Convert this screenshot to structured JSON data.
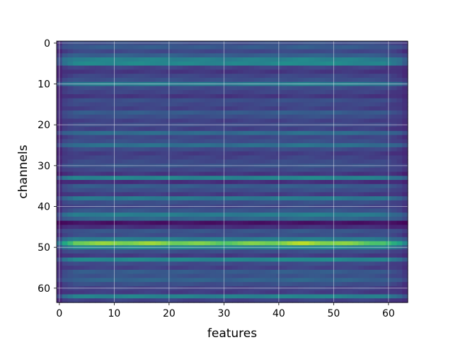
{
  "chart_data": {
    "type": "heatmap",
    "title": "",
    "xlabel": "features",
    "ylabel": "channels",
    "rows": 64,
    "cols": 64,
    "xlim": [
      -0.5,
      63.5
    ],
    "ylim": [
      63.5,
      -0.5
    ],
    "x_ticks": [
      0,
      10,
      20,
      30,
      40,
      50,
      60
    ],
    "y_ticks": [
      0,
      10,
      20,
      30,
      40,
      50,
      60
    ],
    "grid": true,
    "colormap": "viridis",
    "color_range": [
      0,
      1
    ],
    "row_values": [
      0.3,
      0.36,
      0.27,
      0.38,
      0.55,
      0.58,
      0.24,
      0.2,
      0.26,
      0.31,
      0.52,
      0.28,
      0.25,
      0.2,
      0.3,
      0.27,
      0.24,
      0.36,
      0.3,
      0.24,
      0.28,
      0.24,
      0.44,
      0.27,
      0.3,
      0.46,
      0.28,
      0.22,
      0.25,
      0.28,
      0.32,
      0.27,
      0.2,
      0.56,
      0.17,
      0.36,
      0.3,
      0.22,
      0.5,
      0.3,
      0.27,
      0.33,
      0.52,
      0.4,
      0.06,
      0.17,
      0.33,
      0.3,
      0.52,
      0.88,
      0.55,
      0.3,
      0.22,
      0.58,
      0.28,
      0.24,
      0.36,
      0.32,
      0.4,
      0.3,
      0.24,
      0.22,
      0.55,
      0.24
    ],
    "column_envelope": [
      {
        "x": 0,
        "factor": 0.55
      },
      {
        "x": 1,
        "factor": 0.85
      },
      {
        "x": 3,
        "factor": 1.0
      },
      {
        "x": 15,
        "factor": 1.02
      },
      {
        "x": 22,
        "factor": 1.0
      },
      {
        "x": 30,
        "factor": 0.97
      },
      {
        "x": 38,
        "factor": 1.0
      },
      {
        "x": 45,
        "factor": 1.05
      },
      {
        "x": 52,
        "factor": 1.0
      },
      {
        "x": 59,
        "factor": 0.95
      },
      {
        "x": 62,
        "factor": 0.8
      },
      {
        "x": 63,
        "factor": 0.65
      }
    ]
  }
}
